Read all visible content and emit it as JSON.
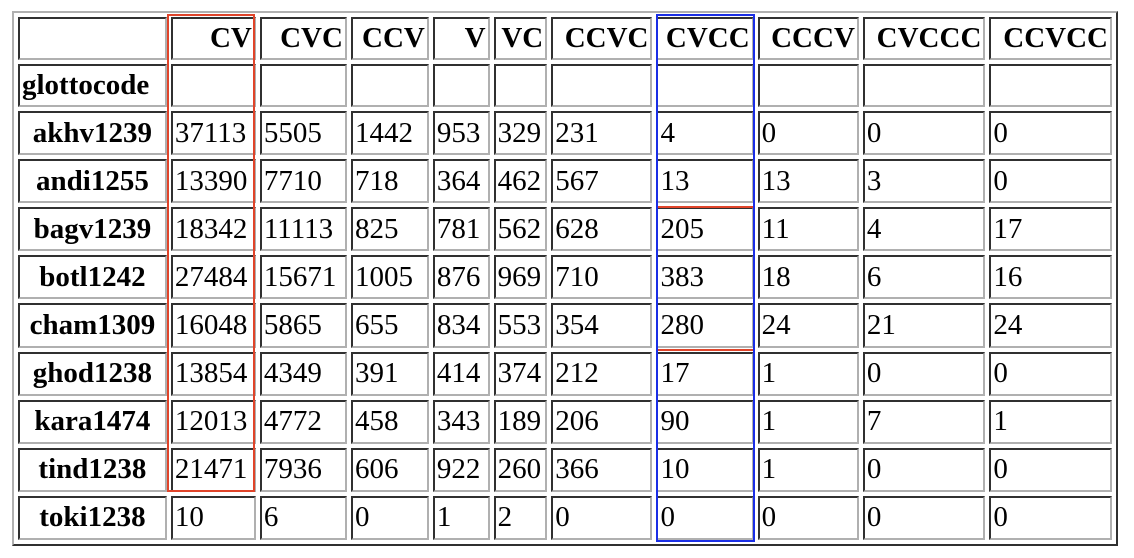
{
  "table": {
    "corner_label": "",
    "index_label": "glottocode",
    "columns": [
      "CV",
      "CVC",
      "CCV",
      "V",
      "VC",
      "CCVC",
      "CVCC",
      "CCCV",
      "CVCCC",
      "CCVCC"
    ],
    "rows": [
      {
        "code": "akhv1239",
        "values": [
          "37113",
          "5505",
          "1442",
          "953",
          "329",
          "231",
          "4",
          "0",
          "0",
          "0"
        ]
      },
      {
        "code": "andi1255",
        "values": [
          "13390",
          "7710",
          "718",
          "364",
          "462",
          "567",
          "13",
          "13",
          "3",
          "0"
        ]
      },
      {
        "code": "bagv1239",
        "values": [
          "18342",
          "11113",
          "825",
          "781",
          "562",
          "628",
          "205",
          "11",
          "4",
          "17"
        ]
      },
      {
        "code": "botl1242",
        "values": [
          "27484",
          "15671",
          "1005",
          "876",
          "969",
          "710",
          "383",
          "18",
          "6",
          "16"
        ]
      },
      {
        "code": "cham1309",
        "values": [
          "16048",
          "5865",
          "655",
          "834",
          "553",
          "354",
          "280",
          "24",
          "21",
          "24"
        ]
      },
      {
        "code": "ghod1238",
        "values": [
          "13854",
          "4349",
          "391",
          "414",
          "374",
          "212",
          "17",
          "1",
          "0",
          "0"
        ]
      },
      {
        "code": "kara1474",
        "values": [
          "12013",
          "4772",
          "458",
          "343",
          "189",
          "206",
          "90",
          "1",
          "7",
          "1"
        ]
      },
      {
        "code": "tind1238",
        "values": [
          "21471",
          "7936",
          "606",
          "922",
          "260",
          "366",
          "10",
          "1",
          "0",
          "0"
        ]
      },
      {
        "code": "toki1238",
        "values": [
          "10",
          "6",
          "0",
          "1",
          "2",
          "0",
          "0",
          "0",
          "0",
          "0"
        ]
      }
    ]
  },
  "colors": {
    "highlight_red": "#e0442a",
    "highlight_blue": "#1a2ee6"
  }
}
